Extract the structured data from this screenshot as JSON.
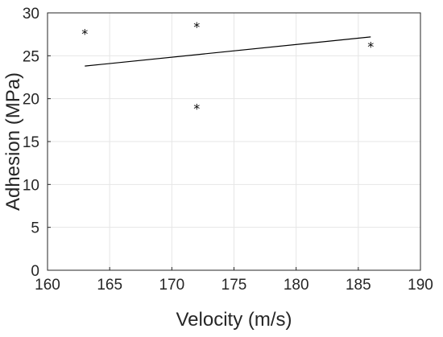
{
  "chart_data": {
    "type": "scatter",
    "xlabel": "Velocity (m/s)",
    "ylabel": "Adhesion (MPa)",
    "xlim": [
      160,
      190
    ],
    "ylim": [
      0,
      30
    ],
    "x_ticks": [
      160,
      165,
      170,
      175,
      180,
      185,
      190
    ],
    "y_ticks": [
      0,
      5,
      10,
      15,
      20,
      25,
      30
    ],
    "grid": true,
    "marker": "*",
    "series": [
      {
        "x": [
          163,
          172,
          172,
          186
        ],
        "y": [
          27.7,
          28.5,
          19.0,
          26.2
        ]
      }
    ],
    "fit_line": {
      "x": [
        163,
        186
      ],
      "y": [
        23.8,
        27.2
      ]
    },
    "colors": {
      "axis": "#262626",
      "grid": "#e6e6e6",
      "marker": "#000000",
      "line": "#000000"
    }
  }
}
